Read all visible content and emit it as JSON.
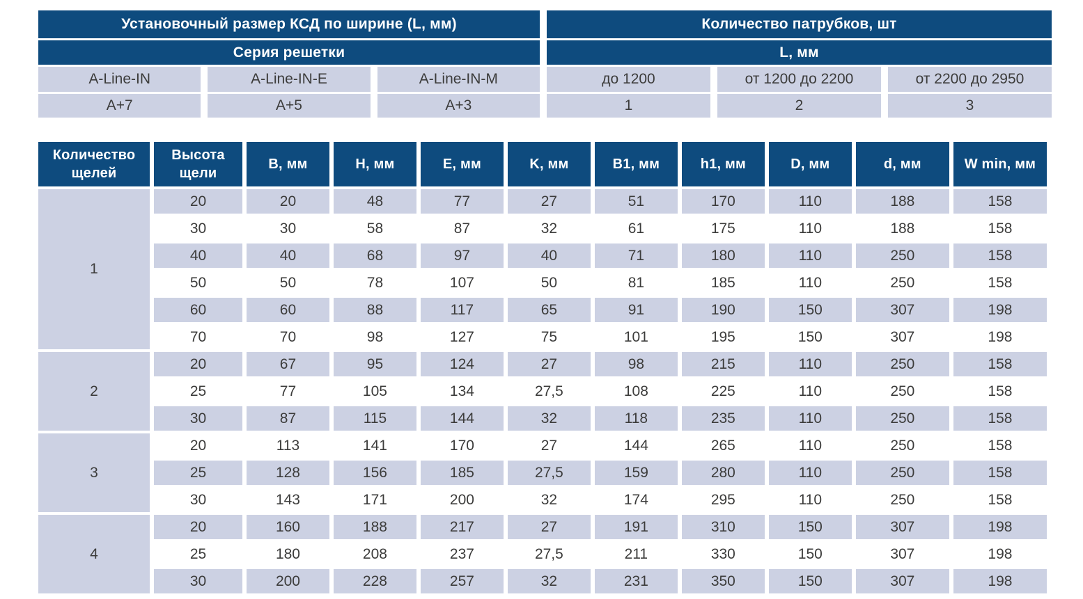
{
  "colors": {
    "header_blue": "#0e4b7e",
    "row_lavender": "#ccd1e3",
    "cell_text": "#3c3c3b"
  },
  "top_table": {
    "left": {
      "title": "Установочный размер КСД по ширине (L, мм)",
      "subtitle": "Серия решетки",
      "columns": [
        "A-Line-IN",
        "A-Line-IN-E",
        "A-Line-IN-M"
      ],
      "values": [
        "A+7",
        "A+5",
        "A+3"
      ]
    },
    "right": {
      "title": "Количество патрубков, шт",
      "subtitle": "L, мм",
      "columns": [
        "до 1200",
        "от 1200 до 2200",
        "от 2200 до 2950"
      ],
      "values": [
        "1",
        "2",
        "3"
      ]
    }
  },
  "main_table": {
    "headers": [
      "Количество щелей",
      "Высота щели",
      "B, мм",
      "H, мм",
      "E, мм",
      "K, мм",
      "B1, мм",
      "h1, мм",
      "D, мм",
      "d, мм",
      "W min, мм"
    ],
    "groups": [
      {
        "label": "1",
        "rows": [
          [
            "20",
            "20",
            "48",
            "77",
            "27",
            "51",
            "170",
            "110",
            "188",
            "158"
          ],
          [
            "30",
            "30",
            "58",
            "87",
            "32",
            "61",
            "175",
            "110",
            "188",
            "158"
          ],
          [
            "40",
            "40",
            "68",
            "97",
            "40",
            "71",
            "180",
            "110",
            "250",
            "158"
          ],
          [
            "50",
            "50",
            "78",
            "107",
            "50",
            "81",
            "185",
            "110",
            "250",
            "158"
          ],
          [
            "60",
            "60",
            "88",
            "117",
            "65",
            "91",
            "190",
            "150",
            "307",
            "198"
          ],
          [
            "70",
            "70",
            "98",
            "127",
            "75",
            "101",
            "195",
            "150",
            "307",
            "198"
          ]
        ]
      },
      {
        "label": "2",
        "rows": [
          [
            "20",
            "67",
            "95",
            "124",
            "27",
            "98",
            "215",
            "110",
            "250",
            "158"
          ],
          [
            "25",
            "77",
            "105",
            "134",
            "27,5",
            "108",
            "225",
            "110",
            "250",
            "158"
          ],
          [
            "30",
            "87",
            "115",
            "144",
            "32",
            "118",
            "235",
            "110",
            "250",
            "158"
          ]
        ]
      },
      {
        "label": "3",
        "rows": [
          [
            "20",
            "113",
            "141",
            "170",
            "27",
            "144",
            "265",
            "110",
            "250",
            "158"
          ],
          [
            "25",
            "128",
            "156",
            "185",
            "27,5",
            "159",
            "280",
            "110",
            "250",
            "158"
          ],
          [
            "30",
            "143",
            "171",
            "200",
            "32",
            "174",
            "295",
            "110",
            "250",
            "158"
          ]
        ]
      },
      {
        "label": "4",
        "rows": [
          [
            "20",
            "160",
            "188",
            "217",
            "27",
            "191",
            "310",
            "150",
            "307",
            "198"
          ],
          [
            "25",
            "180",
            "208",
            "237",
            "27,5",
            "211",
            "330",
            "150",
            "307",
            "198"
          ],
          [
            "30",
            "200",
            "228",
            "257",
            "32",
            "231",
            "350",
            "150",
            "307",
            "198"
          ]
        ]
      }
    ]
  }
}
